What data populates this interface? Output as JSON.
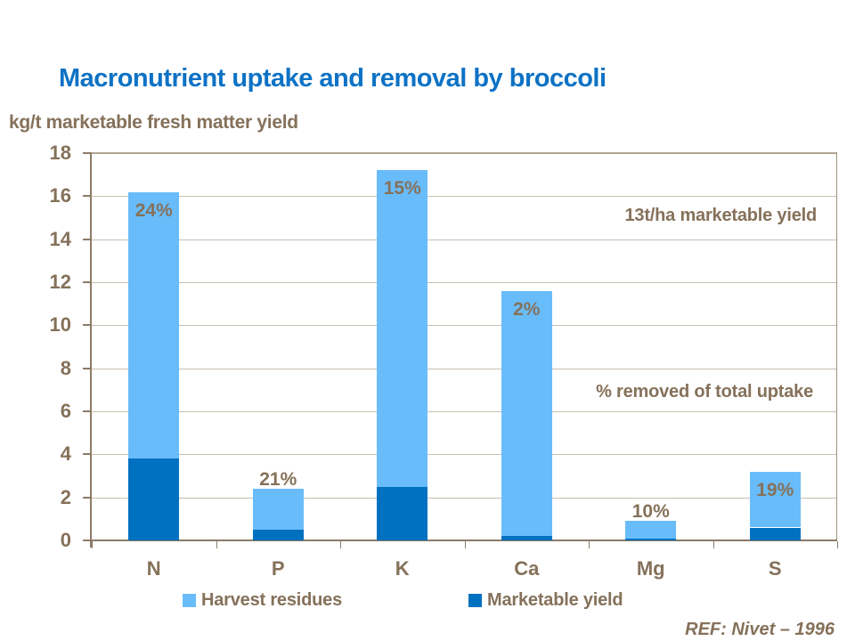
{
  "slide": {
    "title": "Macronutrient uptake and removal by broccoli",
    "subtitle": "kg/t marketable fresh matter yield",
    "reference": "REF: Nivet – 1996"
  },
  "annotations": {
    "yield_note": "13t/ha marketable yield",
    "percent_note": "% removed of total uptake"
  },
  "legend": [
    {
      "label": "Harvest residues",
      "color": "#69bcfa"
    },
    {
      "label": "Marketable yield",
      "color": "#0071c1"
    }
  ],
  "colors": {
    "title_blue": "#0d72c5",
    "text_brown": "#85715a",
    "axis_brown": "#8b7b68",
    "gridline": "#c8bfb2",
    "harvest_residues": "#69bcfa",
    "marketable_yield": "#0071c1",
    "background": "#ffffff"
  },
  "chart_data": {
    "type": "bar",
    "stacked": true,
    "title": "Macronutrient uptake and removal by broccoli",
    "ylabel": "kg/t marketable fresh matter yield",
    "xlabel": "",
    "categories": [
      "N",
      "P",
      "K",
      "Ca",
      "Mg",
      "S"
    ],
    "series": [
      {
        "name": "Marketable yield",
        "color": "#0071c1",
        "values": [
          3.8,
          0.5,
          2.5,
          0.2,
          0.1,
          0.6
        ]
      },
      {
        "name": "Harvest residues",
        "color": "#69bcfa",
        "values": [
          12.4,
          1.9,
          14.7,
          11.4,
          0.8,
          2.6
        ]
      }
    ],
    "totals": [
      16.2,
      2.4,
      17.2,
      11.6,
      0.9,
      3.2
    ],
    "percent_labels": [
      "24%",
      "21%",
      "15%",
      "2%",
      "10%",
      "19%"
    ],
    "ylim": [
      0,
      18
    ],
    "ytick_step": 2,
    "grid": true,
    "legend_position": "bottom",
    "annotations": [
      "13t/ha marketable yield",
      "% removed of total uptake"
    ]
  }
}
